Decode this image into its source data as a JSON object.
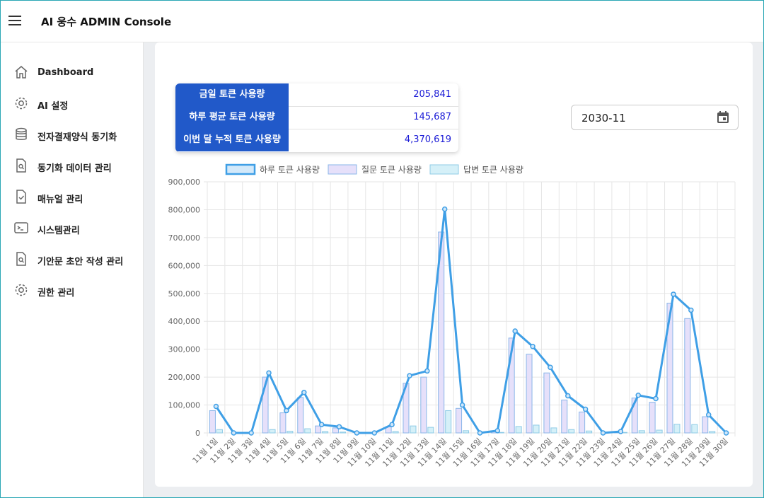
{
  "header": {
    "title": "AI 웅수 ADMIN Console"
  },
  "sidebar": {
    "items": [
      {
        "label": "Dashboard",
        "icon": "home-icon"
      },
      {
        "label": "AI 설정",
        "icon": "gear-icon"
      },
      {
        "label": "전자결재양식 동기화",
        "icon": "database-icon"
      },
      {
        "label": "동기화 데이터 관리",
        "icon": "file-search-icon"
      },
      {
        "label": "매뉴얼 관리",
        "icon": "file-check-icon"
      },
      {
        "label": "시스템관리",
        "icon": "terminal-icon"
      },
      {
        "label": "기안문 초안 작성 관리",
        "icon": "file-search-icon"
      },
      {
        "label": "권한 관리",
        "icon": "gear-icon"
      }
    ]
  },
  "stats": [
    {
      "label": "금일 토큰 사용량",
      "value": "205,841"
    },
    {
      "label": "하루 평균 토큰 사용량",
      "value": "145,687"
    },
    {
      "label": "이번 달 누적 토큰 사용량",
      "value": "4,370,619"
    }
  ],
  "date_picker": {
    "value": "2030-11"
  },
  "colors": {
    "accent": "#2159c9",
    "line": "#3f9fe6",
    "question_bar": "#e6e0fa",
    "answer_bar": "#d5f0f8"
  },
  "chart_data": {
    "type": "bar",
    "categories": [
      "11월 1일",
      "11월 2일",
      "11월 3일",
      "11월 4일",
      "11월 5일",
      "11월 6일",
      "11월 7일",
      "11월 8일",
      "11월 9일",
      "11월 10일",
      "11월 11일",
      "11월 12일",
      "11월 13일",
      "11월 14일",
      "11월 15일",
      "11월 16일",
      "11월 17일",
      "11월 18일",
      "11월 19일",
      "11월 20일",
      "11월 21일",
      "11월 22일",
      "11월 23일",
      "11월 24일",
      "11월 25일",
      "11월 26일",
      "11월 27일",
      "11월 28일",
      "11월 29일",
      "11월 30일"
    ],
    "series": [
      {
        "name": "하루 토큰 사용량",
        "kind": "line",
        "values": [
          95000,
          0,
          0,
          215000,
          80000,
          145000,
          30000,
          22000,
          0,
          0,
          30000,
          205000,
          222000,
          802000,
          100000,
          0,
          8000,
          365000,
          310000,
          235000,
          133000,
          85000,
          0,
          5000,
          135000,
          123000,
          497000,
          440000,
          65000,
          0
        ]
      },
      {
        "name": "질문 토큰 사용량",
        "kind": "bar",
        "values": [
          80000,
          0,
          0,
          200000,
          72000,
          127000,
          25000,
          18000,
          0,
          0,
          22000,
          178000,
          200000,
          720000,
          88000,
          0,
          5000,
          340000,
          282000,
          215000,
          118000,
          75000,
          0,
          3000,
          125000,
          110000,
          465000,
          410000,
          58000,
          0
        ]
      },
      {
        "name": "답변 토큰 사용량",
        "kind": "bar",
        "values": [
          12000,
          0,
          0,
          12000,
          6000,
          15000,
          5000,
          3000,
          0,
          0,
          5000,
          25000,
          20000,
          80000,
          8000,
          0,
          2000,
          23000,
          28000,
          18000,
          12000,
          7000,
          0,
          2000,
          8000,
          10000,
          31000,
          30000,
          5000,
          0
        ]
      }
    ],
    "yticks": [
      "0",
      "100,000",
      "200,000",
      "300,000",
      "400,000",
      "500,000",
      "600,000",
      "700,000",
      "800,000",
      "900,000"
    ],
    "ylim": [
      0,
      900000
    ],
    "grid": true,
    "legend_position": "top"
  }
}
